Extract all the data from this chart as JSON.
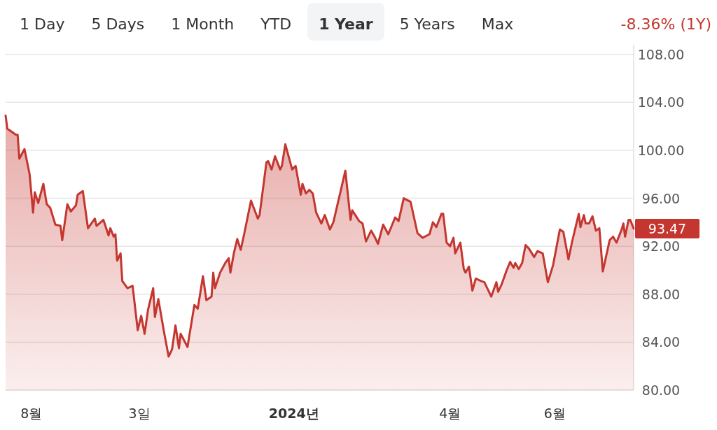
{
  "chart_data": {
    "type": "area",
    "annotations": [
      "1 Day",
      "5 Days",
      "1 Month",
      "YTD",
      "**1 Year**",
      "5 Years",
      "Max",
      "-8.36% (1Y)"
    ],
    "x": [
      "2023-07-17",
      "2023-07-18",
      "2023-07-23",
      "2023-07-24",
      "2023-07-25",
      "2023-07-28",
      "2023-07-31",
      "2023-08-02",
      "2023-08-03",
      "2023-08-05",
      "2023-08-08",
      "2023-08-10",
      "2023-08-12",
      "2023-08-15",
      "2023-08-18",
      "2023-08-19",
      "2023-08-22",
      "2023-08-24",
      "2023-08-27",
      "2023-08-28",
      "2023-08-31",
      "2023-09-03",
      "2023-09-07",
      "2023-09-08",
      "2023-09-12",
      "2023-09-15",
      "2023-09-16",
      "2023-09-18",
      "2023-09-19",
      "2023-09-20",
      "2023-09-22",
      "2023-09-23",
      "2023-09-26",
      "2023-09-29",
      "2023-10-02",
      "2023-10-04",
      "2023-10-06",
      "2023-10-08",
      "2023-10-11",
      "2023-10-12",
      "2023-10-14",
      "2023-10-17",
      "2023-10-20",
      "2023-10-22",
      "2023-10-24",
      "2023-10-26",
      "2023-10-27",
      "2023-10-31",
      "2023-11-04",
      "2023-11-06",
      "2023-11-09",
      "2023-11-11",
      "2023-11-14",
      "2023-11-15",
      "2023-11-16",
      "2023-11-19",
      "2023-11-22",
      "2023-11-24",
      "2023-11-25",
      "2023-11-27",
      "2023-11-29",
      "2023-12-01",
      "2023-12-03",
      "2023-12-07",
      "2023-12-11",
      "2023-12-12",
      "2023-12-16",
      "2023-12-17",
      "2023-12-19",
      "2023-12-21",
      "2023-12-24",
      "2023-12-25",
      "2023-12-27",
      "2023-12-31",
      "2024-01-02",
      "2024-01-05",
      "2024-01-06",
      "2024-01-08",
      "2024-01-10",
      "2024-01-12",
      "2024-01-14",
      "2024-01-17",
      "2024-01-19",
      "2024-01-22",
      "2024-01-24",
      "2024-01-31",
      "2024-02-03",
      "2024-02-04",
      "2024-02-08",
      "2024-02-10",
      "2024-02-12",
      "2024-02-15",
      "2024-02-17",
      "2024-02-19",
      "2024-02-22",
      "2024-02-25",
      "2024-02-29",
      "2024-03-02",
      "2024-03-05",
      "2024-03-09",
      "2024-03-13",
      "2024-03-16",
      "2024-03-20",
      "2024-03-22",
      "2024-03-24",
      "2024-03-27",
      "2024-03-28",
      "2024-03-30",
      "2024-04-01",
      "2024-04-03",
      "2024-04-04",
      "2024-04-07",
      "2024-04-09",
      "2024-04-10",
      "2024-04-12",
      "2024-04-14",
      "2024-04-16",
      "2024-04-19",
      "2024-04-21",
      "2024-04-25",
      "2024-04-28",
      "2024-04-29",
      "2024-05-01",
      "2024-05-04",
      "2024-05-06",
      "2024-05-08",
      "2024-05-09",
      "2024-05-11",
      "2024-05-13",
      "2024-05-15",
      "2024-05-17",
      "2024-05-20",
      "2024-05-22",
      "2024-05-25",
      "2024-05-28",
      "2024-05-31",
      "2024-06-04",
      "2024-06-06",
      "2024-06-09",
      "2024-06-11",
      "2024-06-15",
      "2024-06-16",
      "2024-06-18",
      "2024-06-19",
      "2024-06-21",
      "2024-06-23",
      "2024-06-25",
      "2024-06-27",
      "2024-06-29",
      "2024-07-03",
      "2024-07-05",
      "2024-07-07",
      "2024-07-10",
      "2024-07-11",
      "2024-07-12",
      "2024-07-14",
      "2024-07-15",
      "2024-07-17"
    ],
    "series": [
      {
        "color": "#c4362f",
        "values": [
          102.9,
          101.8,
          101.3,
          101.3,
          99.3,
          100.1,
          98.0,
          94.8,
          96.5,
          95.6,
          97.2,
          95.5,
          95.2,
          93.8,
          93.7,
          92.5,
          95.5,
          94.9,
          95.4,
          96.3,
          96.6,
          93.5,
          94.3,
          93.7,
          94.2,
          92.9,
          93.5,
          92.8,
          93.0,
          90.8,
          91.4,
          89.1,
          88.5,
          88.7,
          85.0,
          86.2,
          84.7,
          86.7,
          88.5,
          86.1,
          87.6,
          85.1,
          82.8,
          83.4,
          85.4,
          83.5,
          84.7,
          83.6,
          87.1,
          86.8,
          89.5,
          87.5,
          87.8,
          89.8,
          88.5,
          89.8,
          90.6,
          91.0,
          89.8,
          91.4,
          92.6,
          91.7,
          93.0,
          95.8,
          94.3,
          94.6,
          99.0,
          99.1,
          98.4,
          99.5,
          98.4,
          98.7,
          100.5,
          98.4,
          98.7,
          96.3,
          97.2,
          96.4,
          96.7,
          96.4,
          94.8,
          93.9,
          94.6,
          93.4,
          94.0,
          98.3,
          94.2,
          95.0,
          94.1,
          93.9,
          92.4,
          93.3,
          92.8,
          92.2,
          93.8,
          93.0,
          94.4,
          94.1,
          96.0,
          95.7,
          93.1,
          92.7,
          93.0,
          94.0,
          93.6,
          94.7,
          94.7,
          92.3,
          92.0,
          92.7,
          91.4,
          92.3,
          90.1,
          89.8,
          90.3,
          88.3,
          89.3,
          89.1,
          89.0,
          87.8,
          89.0,
          88.2,
          88.8,
          90.0,
          90.7,
          90.2,
          90.6,
          90.1,
          90.6,
          92.1,
          91.8,
          91.1,
          91.6,
          91.4,
          89.0,
          90.4,
          93.4,
          93.2,
          90.9,
          92.3,
          94.7,
          93.6,
          94.6,
          93.9,
          93.9,
          94.5,
          93.3,
          93.5,
          89.9,
          92.5,
          92.8,
          92.3,
          93.4,
          93.9,
          92.8,
          94.2,
          94.2,
          93.47
        ],
        "value_labels": [
          null,
          null,
          null,
          null,
          null,
          null,
          null,
          null,
          null,
          null,
          null,
          null,
          null,
          null,
          null,
          null,
          null,
          null,
          null,
          null,
          null,
          null,
          null,
          null,
          null,
          null,
          null,
          null,
          null,
          null,
          null,
          null,
          null,
          null,
          null,
          null,
          null,
          null,
          null,
          null,
          null,
          null,
          null,
          null,
          null,
          null,
          null,
          null,
          null,
          null,
          null,
          null,
          null,
          null,
          null,
          null,
          null,
          null,
          null,
          null,
          null,
          null,
          null,
          null,
          null,
          null,
          null,
          null,
          null,
          null,
          null,
          null,
          null,
          null,
          null,
          null,
          null,
          null,
          null,
          null,
          null,
          null,
          null,
          null,
          null,
          null,
          null,
          null,
          null,
          null,
          null,
          null,
          null,
          null,
          null,
          null,
          null,
          null,
          null,
          null,
          null,
          null,
          null,
          null,
          null,
          null,
          null,
          null,
          null,
          null,
          null,
          null,
          null,
          null,
          null,
          null,
          null,
          null,
          null,
          null,
          null,
          null,
          null,
          null,
          null,
          null,
          null,
          null,
          null,
          null,
          null,
          null,
          null,
          null,
          null,
          null,
          null,
          null,
          null,
          null,
          null,
          null,
          null,
          null,
          null,
          null,
          null,
          null,
          null,
          null,
          null,
          null,
          null,
          null,
          null,
          null,
          null,
          "93.47"
        ]
      }
    ],
    "xlim": [
      "2023-07-17",
      "2024-07-17"
    ],
    "xticks": [
      {
        "value": "2023-08-01",
        "label": "8월"
      },
      {
        "value": "2023-10-03",
        "label": "3일"
      },
      {
        "value": "2024-01-01",
        "label": "**2024년**"
      },
      {
        "value": "2024-04-01",
        "label": "4월"
      },
      {
        "value": "2024-06-01",
        "label": "6월"
      }
    ],
    "ylim": [
      80,
      108.8
    ],
    "yticks": [
      {
        "value": 80,
        "label": "80.00"
      },
      {
        "value": 84,
        "label": "84.00"
      },
      {
        "value": 88,
        "label": "88.00"
      },
      {
        "value": 92,
        "label": "92.00"
      },
      {
        "value": 96,
        "label": "96.00"
      },
      {
        "value": 100,
        "label": "100.00"
      },
      {
        "value": 104,
        "label": "104.00"
      },
      {
        "value": 108,
        "label": "108.00"
      }
    ],
    "grid": "y",
    "marker": "none",
    "line_style": "solid"
  }
}
